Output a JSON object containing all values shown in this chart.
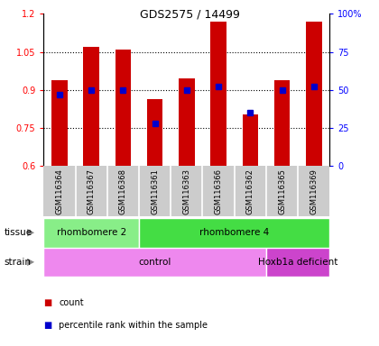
{
  "title": "GDS2575 / 14499",
  "samples": [
    "GSM116364",
    "GSM116367",
    "GSM116368",
    "GSM116361",
    "GSM116363",
    "GSM116366",
    "GSM116362",
    "GSM116365",
    "GSM116369"
  ],
  "counts": [
    0.94,
    1.07,
    1.06,
    0.865,
    0.945,
    1.17,
    0.805,
    0.94,
    1.17
  ],
  "percentile_ranks": [
    47,
    50,
    50,
    28,
    50,
    52,
    35,
    50,
    52
  ],
  "ylim": [
    0.6,
    1.2
  ],
  "y_ticks_left": [
    0.6,
    0.75,
    0.9,
    1.05,
    1.2
  ],
  "y_ticks_right": [
    0,
    25,
    50,
    75,
    100
  ],
  "y_ticks_right_labels": [
    "0",
    "25",
    "50",
    "75",
    "100%"
  ],
  "dotted_lines": [
    0.75,
    0.9,
    1.05
  ],
  "bar_color": "#cc0000",
  "dot_color": "#0000cc",
  "bar_bottom": 0.6,
  "tissue_labels": [
    {
      "text": "rhombomere 2",
      "start": 0,
      "end": 2,
      "color": "#88ee88"
    },
    {
      "text": "rhombomere 4",
      "start": 3,
      "end": 8,
      "color": "#44dd44"
    }
  ],
  "strain_labels": [
    {
      "text": "control",
      "start": 0,
      "end": 6,
      "color": "#ee88ee"
    },
    {
      "text": "Hoxb1a deficient",
      "start": 7,
      "end": 8,
      "color": "#cc44cc"
    }
  ],
  "legend_items": [
    {
      "color": "#cc0000",
      "label": "count"
    },
    {
      "color": "#0000cc",
      "label": "percentile rank within the sample"
    }
  ],
  "tissue_row_label": "tissue",
  "strain_row_label": "strain",
  "bg_color": "#cccccc",
  "arrow_color": "#888888"
}
